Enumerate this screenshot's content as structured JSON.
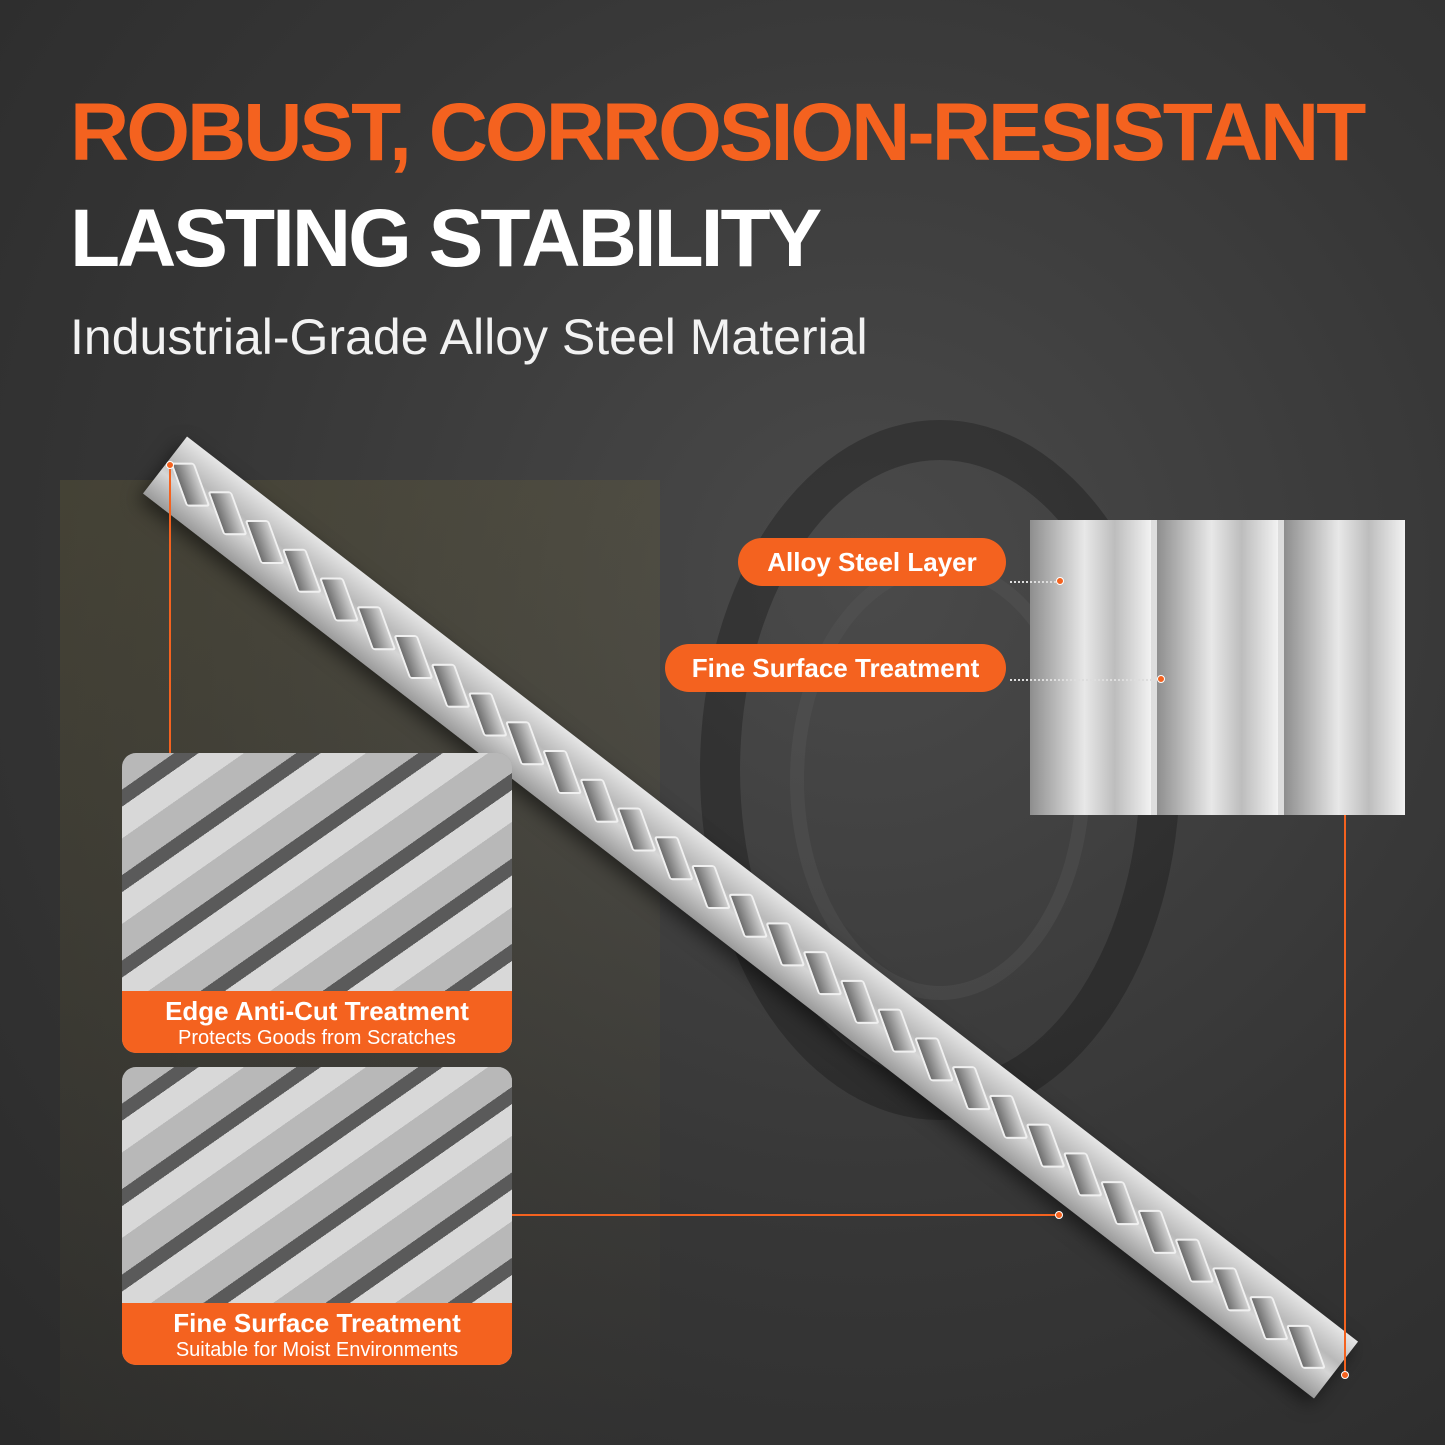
{
  "headline": {
    "line1": "ROBUST, CORROSION-RESISTANT",
    "line2": "LASTING STABILITY",
    "subtitle": "Industrial-Grade Alloy Steel Material"
  },
  "callouts": [
    {
      "label": "Alloy Steel Layer"
    },
    {
      "label": "Fine Surface Treatment"
    }
  ],
  "cards": [
    {
      "title": "Edge Anti-Cut Treatment",
      "subtitle": "Protects Goods from Scratches"
    },
    {
      "title": "Fine Surface Treatment",
      "subtitle": "Suitable for Moist Environments"
    }
  ],
  "colors": {
    "accent": "#f4621f",
    "background": "#363636"
  }
}
